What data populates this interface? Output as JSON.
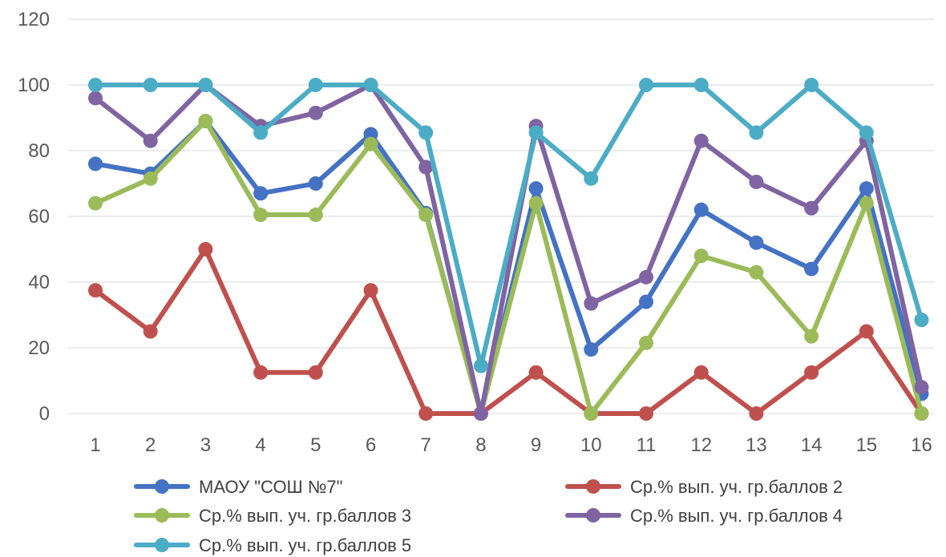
{
  "chart_data": {
    "type": "line",
    "title": "",
    "xlabel": "",
    "ylabel": "",
    "categories": [
      "1",
      "2",
      "3",
      "4",
      "5",
      "6",
      "7",
      "8",
      "9",
      "10",
      "11",
      "12",
      "13",
      "14",
      "15",
      "16"
    ],
    "ylim": [
      0,
      120
    ],
    "yticks": [
      "0",
      "20",
      "40",
      "60",
      "80",
      "100",
      "120"
    ],
    "grid": true,
    "legend_position": "bottom",
    "series": [
      {
        "name": "МАОУ \"СОШ №7\"",
        "color": "#4472c4",
        "values": [
          76,
          73,
          89,
          67,
          70,
          85,
          61,
          0,
          68.5,
          19.5,
          34,
          62,
          52,
          44,
          68.5,
          6
        ]
      },
      {
        "name": "Ср.% вып. уч. гр.баллов 2",
        "color": "#c0504d",
        "values": [
          37.5,
          25,
          50,
          12.5,
          12.5,
          37.5,
          0,
          0,
          12.5,
          0,
          0,
          12.5,
          0,
          12.5,
          25,
          0
        ]
      },
      {
        "name": "Ср.% вып. уч. гр.баллов 3",
        "color": "#9bbb59",
        "values": [
          64,
          71.5,
          89,
          60.5,
          60.5,
          82,
          60.5,
          0,
          64,
          0,
          21.5,
          48,
          43,
          23.5,
          64,
          0
        ]
      },
      {
        "name": "Ср.% вып. уч. гр.баллов 4",
        "color": "#8064a2",
        "values": [
          96,
          83,
          100,
          87.5,
          91.5,
          100,
          75,
          0,
          87.5,
          33.5,
          41.5,
          83,
          70.5,
          62.5,
          83,
          8
        ]
      },
      {
        "name": "Ср.% вып. уч. гр.баллов 5",
        "color": "#4bacc6",
        "values": [
          100,
          100,
          100,
          85.5,
          100,
          100,
          85.5,
          14.5,
          85.5,
          71.5,
          100,
          100,
          85.5,
          100,
          85.5,
          28.5
        ]
      }
    ]
  }
}
